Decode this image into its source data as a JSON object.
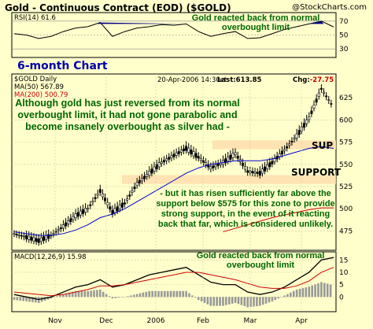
{
  "header": {
    "title": "Gold - Continuous Contract (EOD) ($GOLD)",
    "copyright": "@StockCharts.com"
  },
  "rsi_panel": {
    "label": "RSI(14) 61.6",
    "note": "Gold reacted back from normal overbought limit",
    "ticks": [
      "70",
      "50",
      "30"
    ]
  },
  "price_panel": {
    "chart_label": "6-month Chart",
    "symbol_label": "$GOLD Daily",
    "ma50_label": "MA(50) 567.89",
    "ma200_label": "MA(200) 500.79",
    "date_label": "20-Apr-2006 14:30et",
    "last_label": "Last:613.85",
    "chg_prefix": "Chg:",
    "chg_value": "-27.75",
    "note_top": "Although gold has just reversed from its normal overbought limit, it had not gone parabolic and become insanely overbought as silver had -",
    "note_bottom": "- but it has risen sufficiently far above the support below $575 for this zone to provide strong support, in the event of it reacting back that far, which is considered unlikely.",
    "sup_label": "SUP",
    "support_label": "SUPPORT",
    "y_ticks": [
      "625",
      "600",
      "575",
      "550",
      "525",
      "500",
      "475"
    ]
  },
  "macd_panel": {
    "label": "MACD(12,26,9) 15.98",
    "note": "Gold reacted back from normal overbought limit",
    "ticks": [
      "15",
      "10",
      "5",
      "0"
    ]
  },
  "x_axis": {
    "labels": [
      "Nov",
      "Dec",
      "2006",
      "Feb",
      "Mar",
      "Apr"
    ]
  },
  "colors": {
    "background": "#ffffcc",
    "support_band": "#ffdead",
    "ma200": "#cc0000",
    "ma50": "#0000cc",
    "annotation": "#006600"
  },
  "chart_data": {
    "type": "line",
    "ylim": [
      455,
      650
    ],
    "x": [
      "2005-10-24",
      "2005-10-31",
      "2005-11-07",
      "2005-11-14",
      "2005-11-21",
      "2005-11-28",
      "2005-12-05",
      "2005-12-12",
      "2005-12-19",
      "2005-12-26",
      "2006-01-02",
      "2006-01-09",
      "2006-01-16",
      "2006-01-23",
      "2006-01-30",
      "2006-02-06",
      "2006-02-13",
      "2006-02-20",
      "2006-02-27",
      "2006-03-06",
      "2006-03-13",
      "2006-03-20",
      "2006-03-27",
      "2006-04-03",
      "2006-04-10",
      "2006-04-17",
      "2006-04-20"
    ],
    "series": [
      {
        "name": "$GOLD Daily",
        "values": [
          472,
          468,
          464,
          470,
          480,
          492,
          500,
          520,
          496,
          506,
          528,
          540,
          552,
          560,
          568,
          558,
          546,
          552,
          562,
          542,
          540,
          552,
          566,
          582,
          602,
          635,
          614
        ]
      },
      {
        "name": "MA(50)",
        "values": [
          474,
          472,
          470,
          470,
          472,
          476,
          482,
          490,
          494,
          500,
          508,
          516,
          524,
          532,
          540,
          546,
          550,
          552,
          554,
          554,
          554,
          556,
          560,
          564,
          568,
          570,
          568
        ]
      },
      {
        "name": "MA(200)",
        "values": [
          null,
          null,
          null,
          null,
          null,
          null,
          null,
          null,
          null,
          null,
          null,
          null,
          null,
          null,
          null,
          null,
          null,
          474,
          478,
          482,
          486,
          490,
          493,
          496,
          499,
          501,
          501
        ]
      }
    ],
    "support_zones": [
      [
        567,
        577
      ],
      [
        528,
        538
      ]
    ],
    "rsi": {
      "values": [
        52,
        50,
        45,
        48,
        55,
        60,
        62,
        68,
        48,
        55,
        60,
        62,
        65,
        64,
        66,
        55,
        48,
        52,
        55,
        45,
        46,
        52,
        58,
        62,
        66,
        70,
        61.6
      ],
      "ylim": [
        20,
        80
      ]
    },
    "macd": {
      "line": [
        1,
        0,
        -1,
        0,
        2,
        4,
        5,
        7,
        4,
        5,
        7,
        9,
        10,
        11,
        12,
        9,
        6,
        5,
        5,
        2,
        1,
        2,
        4,
        7,
        10,
        15,
        15.98
      ],
      "signal": [
        2,
        1.5,
        1,
        0.5,
        1,
        2,
        3,
        4.5,
        4.5,
        5,
        6,
        7,
        8,
        9,
        10,
        10,
        9,
        8,
        7,
        5.5,
        4,
        3.5,
        3.5,
        4.5,
        6.5,
        10,
        12
      ],
      "ylim": [
        -5,
        17
      ]
    }
  }
}
